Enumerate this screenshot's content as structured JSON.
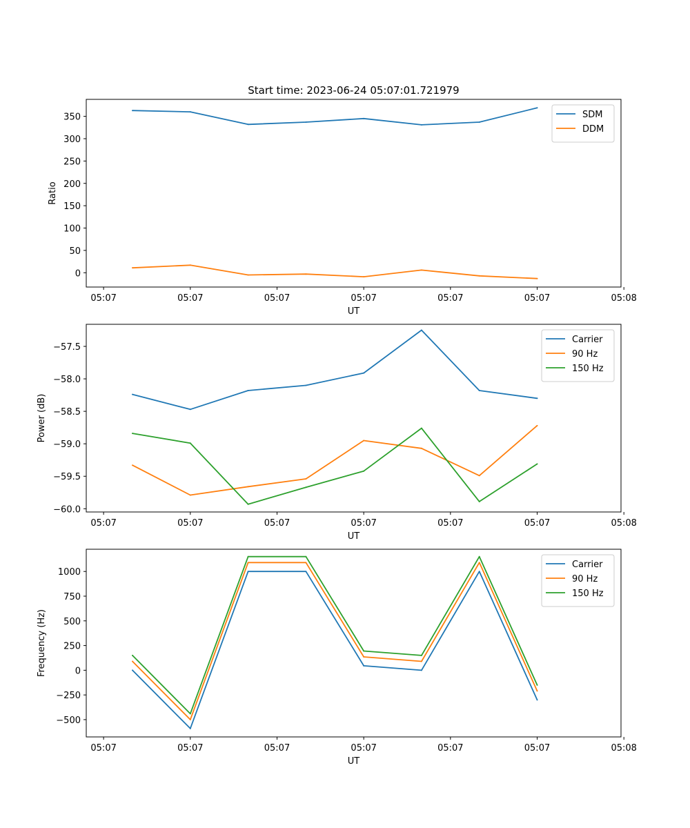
{
  "colors": {
    "blue": "#1f77b4",
    "orange": "#ff7f0e",
    "green": "#2ca02c"
  },
  "chart_data": [
    {
      "type": "line",
      "title": "Start time: 2023-06-24 05:07:01.721979",
      "xlabel": "UT",
      "ylabel": "Ratio",
      "x": [
        1,
        2,
        3,
        4,
        5,
        6,
        7,
        8
      ],
      "xlim": [
        0.2,
        9.45
      ],
      "xticks": [
        0.5,
        2,
        3.5,
        5,
        6.5,
        8,
        9.5
      ],
      "xtick_labels": [
        "05:07",
        "05:07",
        "05:07",
        "05:07",
        "05:07",
        "05:07",
        "05:08"
      ],
      "ylim": [
        -32,
        388
      ],
      "yticks": [
        0,
        50,
        100,
        150,
        200,
        250,
        300,
        350
      ],
      "ytick_labels": [
        "0",
        "50",
        "100",
        "150",
        "200",
        "250",
        "300",
        "350"
      ],
      "legend": "top-right",
      "series": [
        {
          "name": "SDM",
          "color": "blue",
          "values": [
            363,
            360,
            332,
            337,
            345,
            331,
            337,
            369
          ]
        },
        {
          "name": "DDM",
          "color": "orange",
          "values": [
            11,
            17,
            -5,
            -3,
            -9,
            6,
            -7,
            -13
          ]
        }
      ]
    },
    {
      "type": "line",
      "title": "",
      "xlabel": "UT",
      "ylabel": "Power (dB)",
      "x": [
        1,
        2,
        3,
        4,
        5,
        6,
        7,
        8
      ],
      "xlim": [
        0.2,
        9.45
      ],
      "xticks": [
        0.5,
        2,
        3.5,
        5,
        6.5,
        8,
        9.5
      ],
      "xtick_labels": [
        "05:07",
        "05:07",
        "05:07",
        "05:07",
        "05:07",
        "05:07",
        "05:08"
      ],
      "ylim": [
        -60.05,
        -57.16
      ],
      "yticks": [
        -60.0,
        -59.5,
        -59.0,
        -58.5,
        -58.0,
        -57.5
      ],
      "ytick_labels": [
        "−60.0",
        "−59.5",
        "−59.0",
        "−58.5",
        "−58.0",
        "−57.5"
      ],
      "legend": "top-right",
      "series": [
        {
          "name": "Carrier",
          "color": "blue",
          "values": [
            -58.24,
            -58.47,
            -58.18,
            -58.1,
            -57.91,
            -57.25,
            -58.18,
            -58.3
          ]
        },
        {
          "name": "90 Hz",
          "color": "orange",
          "values": [
            -59.33,
            -59.79,
            -59.66,
            -59.54,
            -58.95,
            -59.07,
            -59.49,
            -58.72
          ]
        },
        {
          "name": "150 Hz",
          "color": "green",
          "values": [
            -58.84,
            -58.99,
            -59.93,
            -59.67,
            -59.42,
            -58.76,
            -59.89,
            -59.31
          ]
        }
      ]
    },
    {
      "type": "line",
      "title": "",
      "xlabel": "UT",
      "ylabel": "Frequency (Hz)",
      "x": [
        1,
        2,
        3,
        4,
        5,
        6,
        7,
        8
      ],
      "xlim": [
        0.2,
        9.45
      ],
      "xticks": [
        0.5,
        2,
        3.5,
        5,
        6.5,
        8,
        9.5
      ],
      "xtick_labels": [
        "05:07",
        "05:07",
        "05:07",
        "05:07",
        "05:07",
        "05:07",
        "05:08"
      ],
      "ylim": [
        -675,
        1225
      ],
      "yticks": [
        -500,
        -250,
        0,
        250,
        500,
        750,
        1000
      ],
      "ytick_labels": [
        "−500",
        "−250",
        "0",
        "250",
        "500",
        "750",
        "1000"
      ],
      "legend": "top-right",
      "series": [
        {
          "name": "Carrier",
          "color": "blue",
          "values": [
            0,
            -590,
            1000,
            1000,
            45,
            0,
            1000,
            -300
          ]
        },
        {
          "name": "90 Hz",
          "color": "orange",
          "values": [
            90,
            -500,
            1090,
            1090,
            135,
            90,
            1090,
            -210
          ]
        },
        {
          "name": "150 Hz",
          "color": "green",
          "values": [
            150,
            -440,
            1150,
            1150,
            195,
            150,
            1150,
            -150
          ]
        }
      ]
    }
  ]
}
